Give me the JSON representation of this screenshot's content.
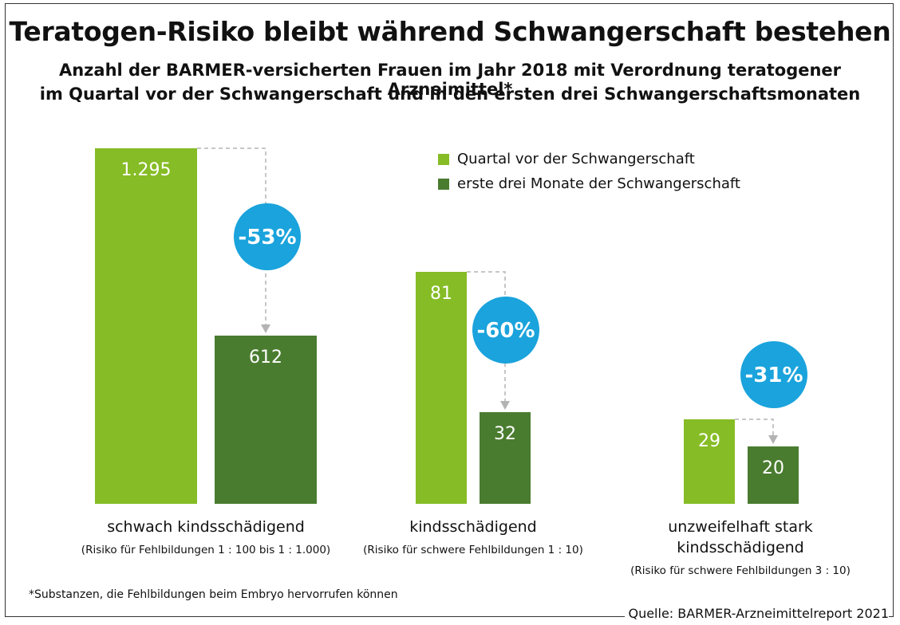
{
  "title": "Teratogen-Risiko bleibt während Schwangerschaft bestehen",
  "subtitle_line1": "Anzahl der BARMER-versicherten Frauen im Jahr 2018 mit Verordnung teratogener Arzneimittel*",
  "subtitle_line2": "im Quartal vor der Schwangerschaft und in den ersten drei Schwangerschaftsmonaten",
  "footnote": "*Substanzen, die Fehlbildungen beim Embryo hervorrufen können",
  "source": "Quelle: BARMER-Arzneimittelreport 2021",
  "colors": {
    "light_green": "#86bc25",
    "dark_green": "#4a7c30",
    "bubble_blue": "#1aa3dc",
    "arrow_gray": "#b3b3b3"
  },
  "chart_data": {
    "type": "bar",
    "categories": [
      {
        "label": "schwach kindsschädigend",
        "note": "(Risiko für Fehlbildungen 1 : 100 bis 1 : 1.000)"
      },
      {
        "label": "kindsschädigend",
        "note": "(Risiko für schwere Fehlbildungen 1 : 10)"
      },
      {
        "label_line1": "unzweifelhaft stark",
        "label_line2": "kindsschädigend",
        "note": "(Risiko für schwere Fehlbildungen 3 : 10)"
      }
    ],
    "series": [
      {
        "name": "Quartal vor der Schwangerschaft",
        "values": [
          1295,
          81,
          29
        ],
        "labels": [
          "1.295",
          "81",
          "29"
        ]
      },
      {
        "name": "erste drei Monate der Schwangerschaft",
        "values": [
          612,
          32,
          20
        ],
        "labels": [
          "612",
          "32",
          "20"
        ]
      }
    ],
    "changes": [
      "-53%",
      "-60%",
      "-31%"
    ],
    "legend": "top-right",
    "grid": false
  }
}
